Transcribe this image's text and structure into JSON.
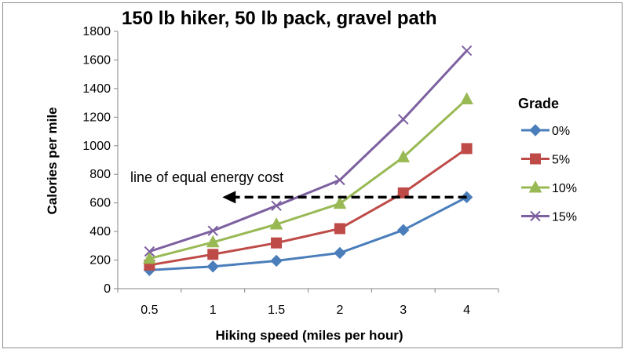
{
  "chart_data": {
    "type": "line",
    "title": "150 lb hiker, 50 lb pack, gravel path",
    "xlabel": "Hiking speed (miles per hour)",
    "ylabel": "Calories per mile",
    "categories": [
      "0.5",
      "1",
      "1.5",
      "2",
      "3",
      "4"
    ],
    "ylim": [
      0,
      1800
    ],
    "yticks": [
      0,
      200,
      400,
      600,
      800,
      1000,
      1200,
      1400,
      1600,
      1800
    ],
    "grid": false,
    "legend": {
      "title": "Grade",
      "position": "right"
    },
    "series": [
      {
        "name": "0%",
        "color": "#4a7ebb",
        "marker": "diamond",
        "values": [
          130,
          155,
          195,
          250,
          410,
          640
        ]
      },
      {
        "name": "5%",
        "color": "#be4b48",
        "marker": "square",
        "values": [
          165,
          240,
          320,
          420,
          670,
          980
        ]
      },
      {
        "name": "10%",
        "color": "#98b954",
        "marker": "triangle",
        "values": [
          210,
          325,
          450,
          595,
          920,
          1325
        ]
      },
      {
        "name": "15%",
        "color": "#7d60a0",
        "marker": "x",
        "values": [
          260,
          405,
          580,
          760,
          1185,
          1665
        ]
      }
    ],
    "annotation": {
      "text": "line of equal energy cost",
      "arrow_y": 640,
      "arrow_from_category": "4",
      "arrow_to_category": "1"
    }
  }
}
